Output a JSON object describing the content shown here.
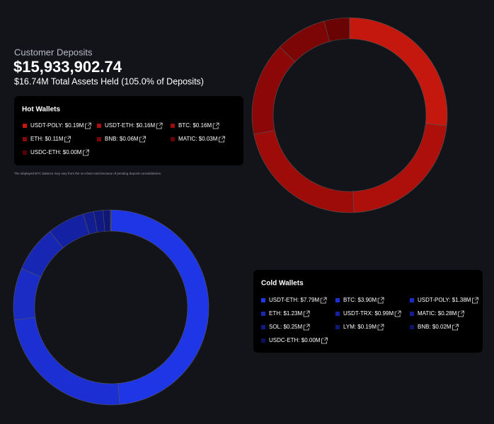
{
  "header": {
    "label": "Customer Deposits",
    "total": "$15,933,902.74",
    "assets": "$16.74M Total Assets Held (105.0% of Deposits)"
  },
  "note": "The displayed BTC balance may vary from the on-chain total because of pending deposit consolidations.",
  "chart_data": [
    {
      "type": "pie",
      "title": "Hot Wallets",
      "categories": [
        "USDT-POLY: $0.19M",
        "USDT-ETH: $0.16M",
        "BTC: $0.16M",
        "ETH: $0.11M",
        "BNB: $0.06M",
        "MATIC: $0.03M",
        "USDC-ETH: $0.00M"
      ],
      "values": [
        0.19,
        0.16,
        0.16,
        0.11,
        0.06,
        0.03,
        0.0
      ],
      "colors": [
        "#c4180f",
        "#ad0f0b",
        "#9e0c09",
        "#8c0707",
        "#7c0505",
        "#6a0303",
        "#560202"
      ]
    },
    {
      "type": "pie",
      "title": "Cold Wallets",
      "categories": [
        "USDT-ETH: $7.79M",
        "BTC: $3.90M",
        "USDT-POLY: $1.38M",
        "ETH: $1.23M",
        "USDT-TRX: $0.99M",
        "MATIC: $0.28M",
        "SOL: $0.25M",
        "LYM: $0.19M",
        "BNB: $0.02M",
        "USDC-ETH: $0.00M"
      ],
      "values": [
        7.79,
        3.9,
        1.38,
        1.23,
        0.99,
        0.28,
        0.25,
        0.19,
        0.02,
        0.0
      ],
      "colors": [
        "#1f36e6",
        "#1b2fd2",
        "#1a2cc4",
        "#1727b4",
        "#1421a2",
        "#121d92",
        "#101984",
        "#0e1676",
        "#0c1368",
        "#0a105a"
      ]
    }
  ]
}
